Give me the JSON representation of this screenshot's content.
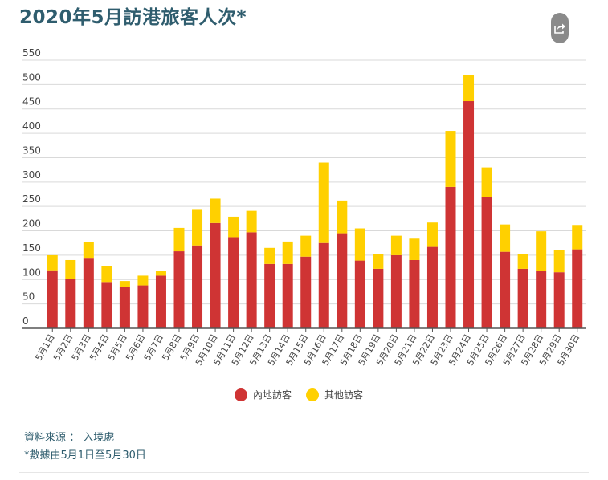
{
  "title": "2020年5月訪港旅客人次*",
  "share_icon": "share-icon",
  "colors": {
    "mainland": "#cf3434",
    "other": "#ffd000",
    "grid": "#d9d9d9",
    "axis": "#555555",
    "text": "#444444",
    "accent": "#2f5d6e"
  },
  "legend": {
    "mainland_label": "內地訪客",
    "other_label": "其他訪客"
  },
  "source": {
    "line1": "資料來源 ： 入境處",
    "line2": "*數據由5月1日至5月30日"
  },
  "chart_data": {
    "type": "bar",
    "stacked": true,
    "title": "2020年5月訪港旅客人次*",
    "xlabel": "",
    "ylabel": "",
    "ylim": [
      0,
      550
    ],
    "yticks": [
      0,
      50,
      100,
      150,
      200,
      250,
      300,
      350,
      400,
      450,
      500,
      550
    ],
    "grid": true,
    "legend_position": "bottom",
    "categories": [
      "5月1日",
      "5月2日",
      "5月3日",
      "5月4日",
      "5月5日",
      "5月6日",
      "5月7日",
      "5月8日",
      "5月9日",
      "5月10日",
      "5月11日",
      "5月12日",
      "5月13日",
      "5月14日",
      "5月15日",
      "5月16日",
      "5月17日",
      "5月18日",
      "5月19日",
      "5月20日",
      "5月21日",
      "5月22日",
      "5月23日",
      "5月24日",
      "5月25日",
      "5月26日",
      "5月27日",
      "5月28日",
      "5月29日",
      "5月30日"
    ],
    "series": [
      {
        "name": "內地訪客",
        "values": [
          119,
          102,
          143,
          95,
          85,
          88,
          108,
          158,
          170,
          216,
          187,
          197,
          132,
          132,
          147,
          175,
          195,
          139,
          122,
          150,
          140,
          167,
          290,
          466,
          270,
          157,
          122,
          117,
          115,
          162
        ]
      },
      {
        "name": "其他訪客",
        "values": [
          31,
          38,
          34,
          33,
          12,
          20,
          10,
          48,
          73,
          50,
          42,
          44,
          33,
          46,
          43,
          165,
          67,
          66,
          31,
          40,
          44,
          50,
          115,
          54,
          60,
          56,
          30,
          82,
          45,
          50
        ]
      }
    ]
  }
}
